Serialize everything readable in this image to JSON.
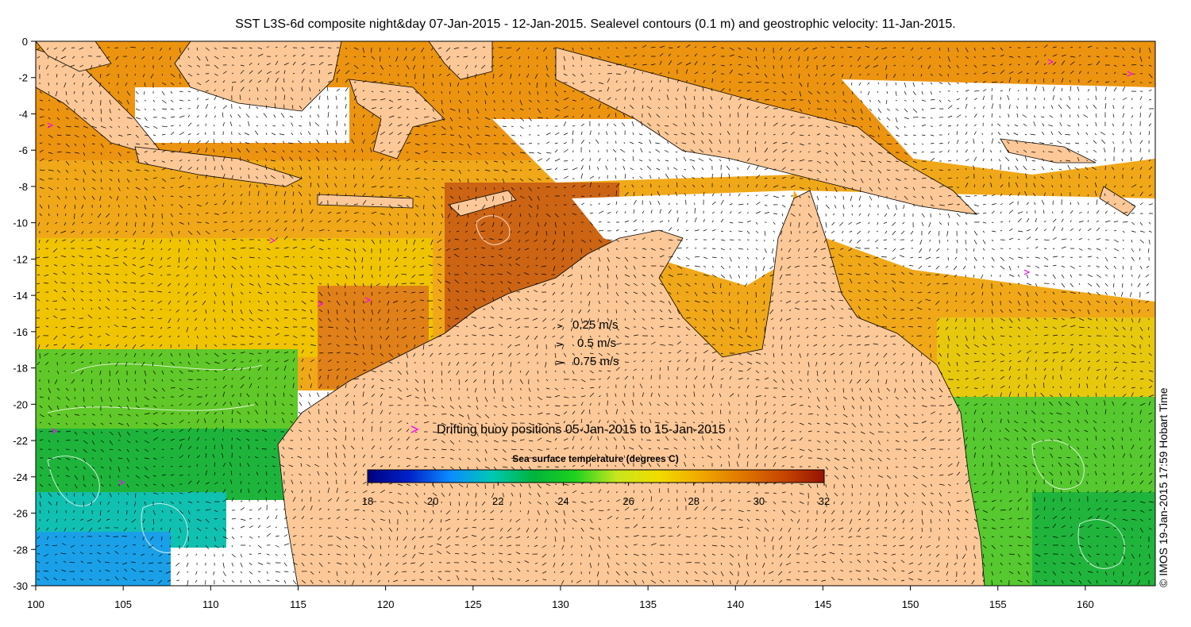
{
  "title": "SST L3S-6d composite night&day 07-Jan-2015 - 12-Jan-2015. Sealevel contours (0.1 m) and geostrophic velocity: 11-Jan-2015.",
  "axes": {
    "x_ticks": [
      "100",
      "105",
      "110",
      "115",
      "120",
      "125",
      "130",
      "135",
      "140",
      "145",
      "150",
      "155",
      "160"
    ],
    "y_ticks": [
      "0",
      "-2",
      "-4",
      "-6",
      "-8",
      "-10",
      "-12",
      "-14",
      "-16",
      "-18",
      "-20",
      "-22",
      "-24",
      "-26",
      "-28",
      "-30"
    ],
    "lon_range": [
      100,
      164
    ],
    "lat_range": [
      -30,
      0
    ]
  },
  "velocity_legend": [
    {
      "label": "0.25 m/s",
      "speed": 0.25
    },
    {
      "label": "0.5 m/s",
      "speed": 0.5
    },
    {
      "label": "0.75 m/s",
      "speed": 0.75
    }
  ],
  "buoy_legend": {
    "label": "Drifting buoy positions 05-Jan-2015 to 15-Jan-2015",
    "color": "#ff00ff"
  },
  "colorbar": {
    "title": "Sea surface temperature (degrees C)",
    "ticks": [
      "18",
      "20",
      "22",
      "24",
      "26",
      "28",
      "30",
      "32"
    ],
    "range": [
      18,
      32
    ],
    "colors": [
      "#00007f",
      "#0022c8",
      "#0a8cff",
      "#00c8b4",
      "#00b43c",
      "#1ed21e",
      "#c8e61e",
      "#f0dc00",
      "#f0aa00",
      "#e07800",
      "#c84600",
      "#961400"
    ]
  },
  "credit": "© IMOS 19-Jan-2015 17:59 Hobart Time",
  "land_color": "#fcc898",
  "no_data_color": "#ffffff"
}
